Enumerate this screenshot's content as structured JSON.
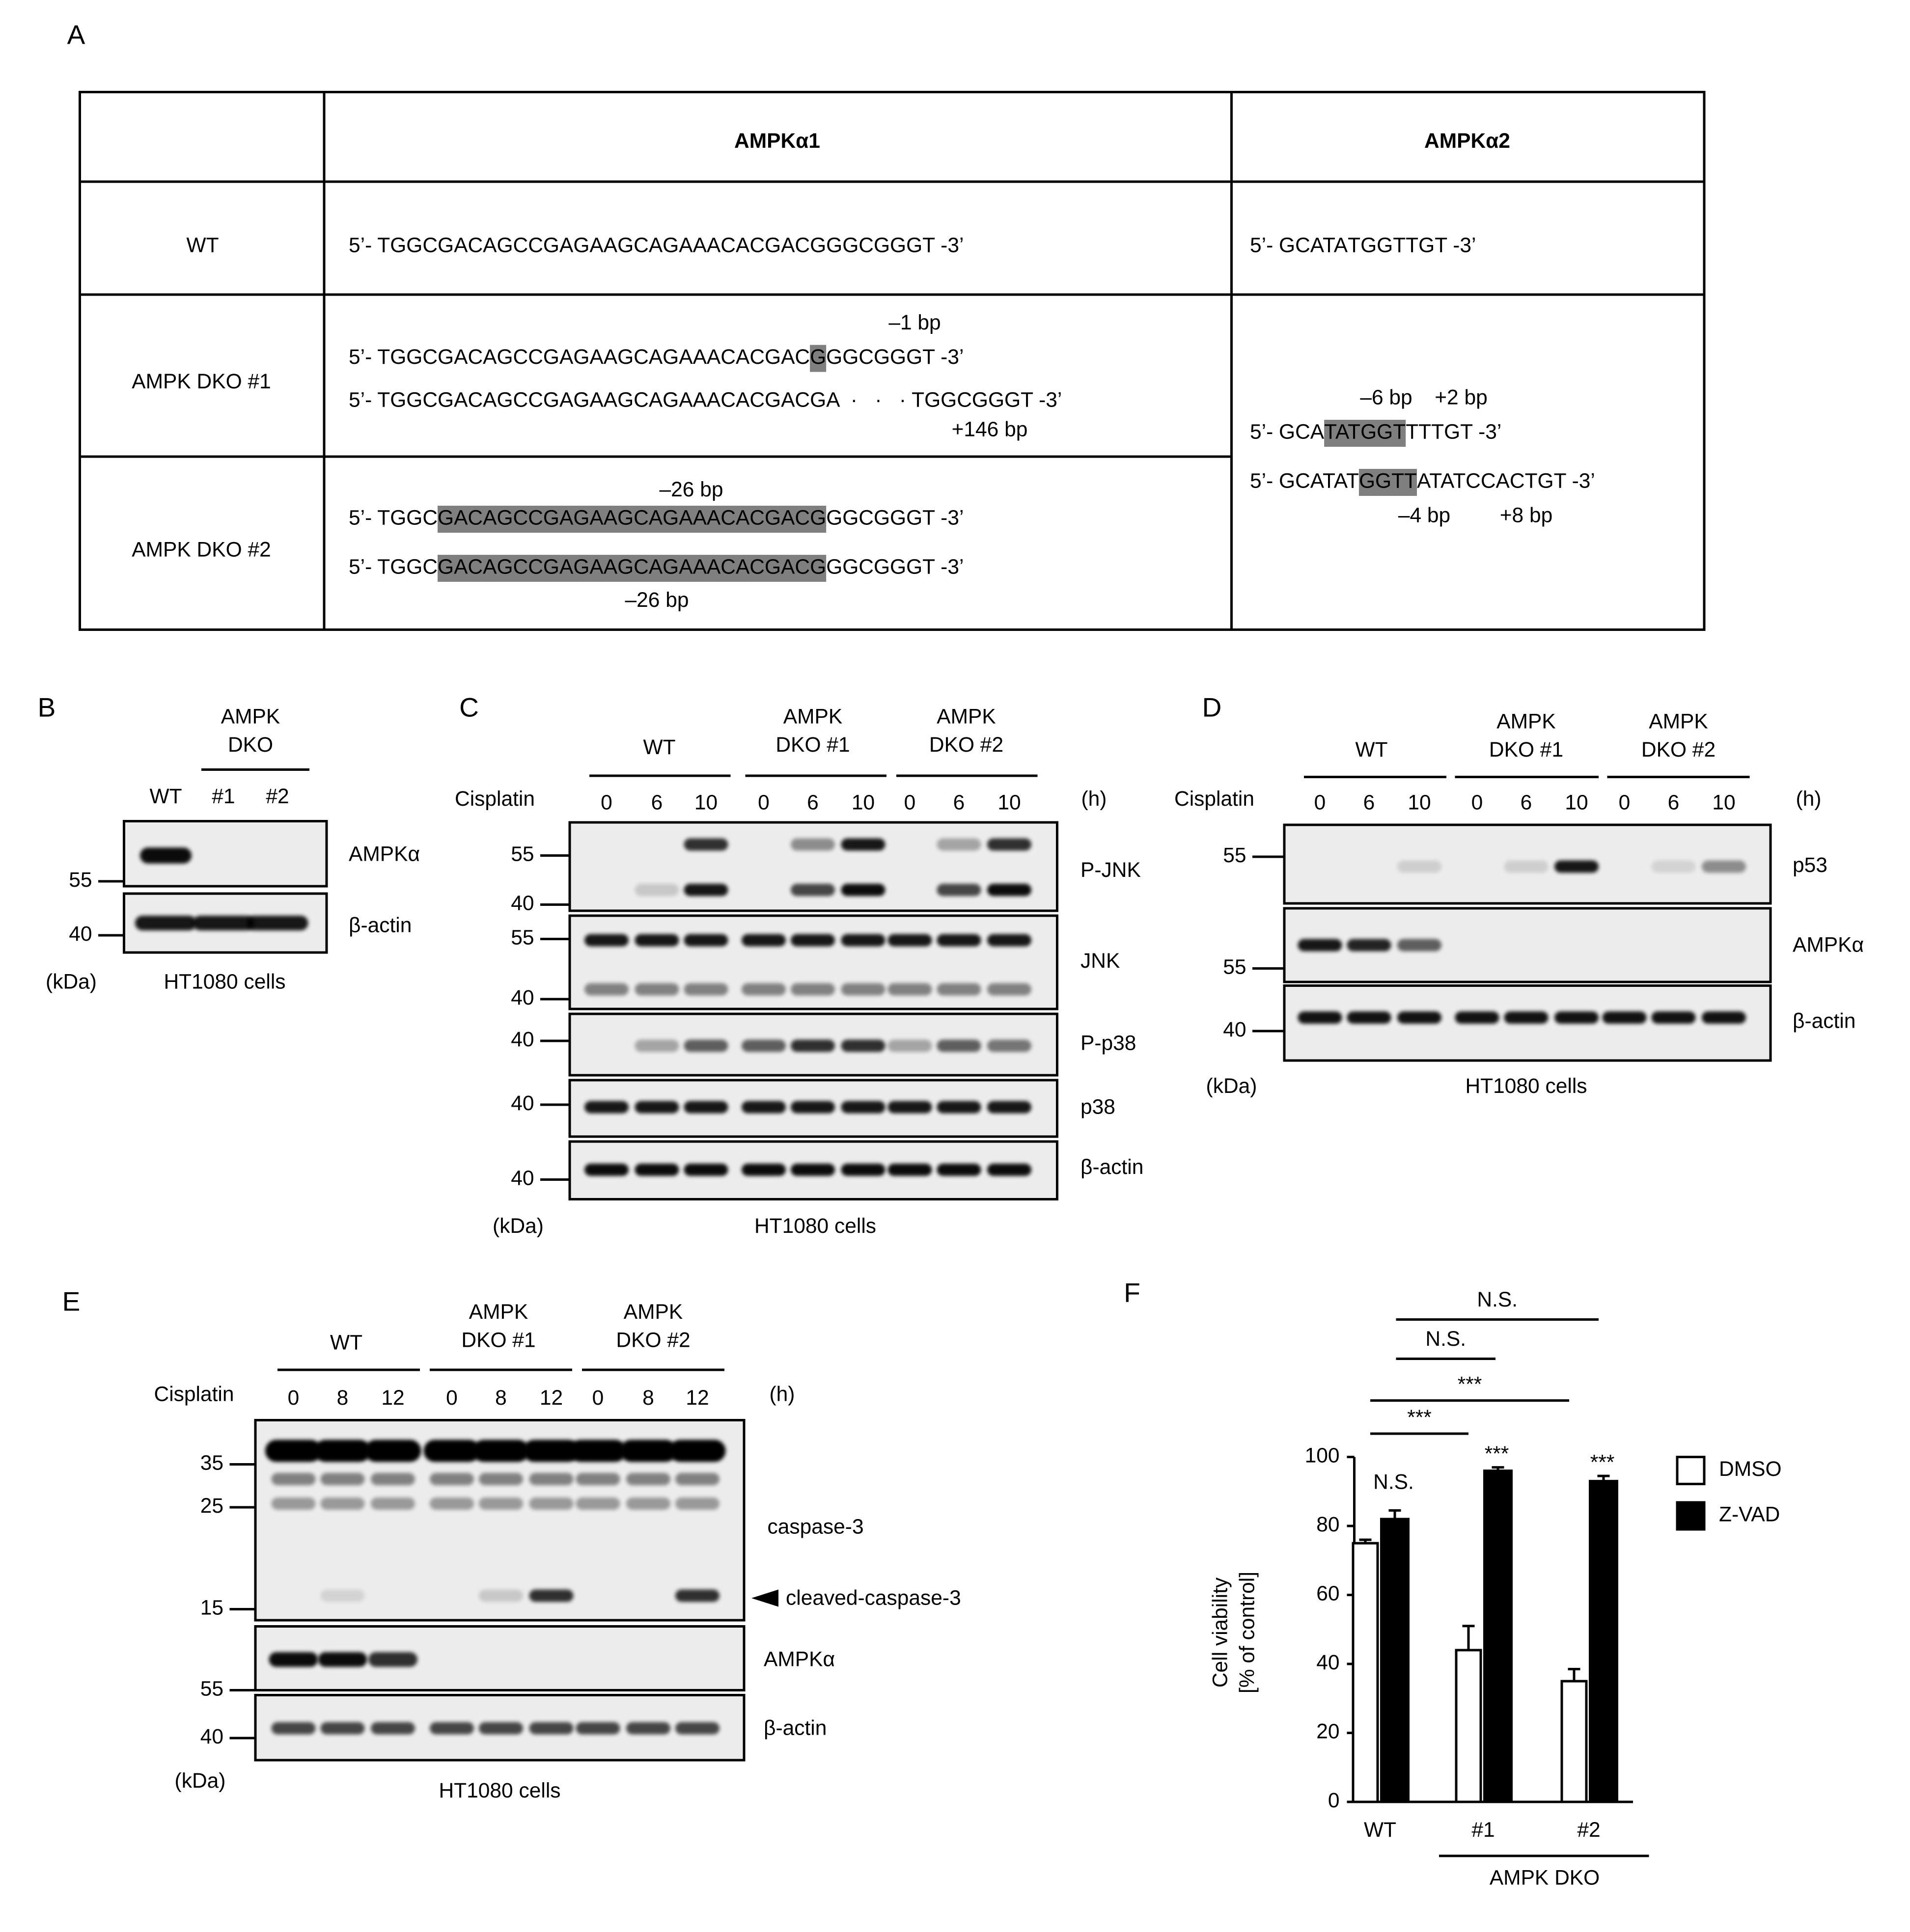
{
  "panel_a": {
    "label": "A",
    "headers": [
      "AMPKα1",
      "AMPKα2"
    ],
    "row_labels": [
      "WT",
      "AMPK DKO #1",
      "AMPK DKO #2"
    ],
    "sequences": [
      {
        "segments": [
          {
            "text": "5’- TGGCGACAGCCGAGAAGCAGAAACACGACGGGC",
            "style": "plain"
          },
          {
            "text": "GGG",
            "style": "blue"
          },
          {
            "text": "T -3’",
            "style": "plain"
          }
        ]
      },
      {
        "segments": [
          {
            "text": "5’- GCATA",
            "style": "plain"
          },
          {
            "text": "TGG",
            "style": "blue"
          },
          {
            "text": "TTGT -3’",
            "style": "plain"
          }
        ]
      },
      {
        "segments": [
          {
            "text": "5’- TGGCGACAGCCGAGAAGCAGAAACACGAC",
            "style": "plain"
          },
          {
            "text": "G",
            "style": "gray"
          },
          {
            "text": "GGC",
            "style": "plain"
          },
          {
            "text": "GGG",
            "style": "blue"
          },
          {
            "text": "T -3’",
            "style": "plain"
          }
        ]
      },
      {
        "segments": [
          {
            "text": "5’- TGGCGACAGCCGAGAAGCAGAAACACGACG",
            "style": "plain"
          },
          {
            "text": "A  ·   ·   · T",
            "style": "red"
          },
          {
            "text": "GGC",
            "style": "plain"
          },
          {
            "text": "GGG",
            "style": "blue"
          },
          {
            "text": "T -3’",
            "style": "plain"
          }
        ]
      },
      {
        "segments": [
          {
            "text": "5’- TGGC",
            "style": "plain"
          },
          {
            "text": "GACAGCCGAGAAGCAGAAACACGACG",
            "style": "gray"
          },
          {
            "text": "GGC",
            "style": "plain"
          },
          {
            "text": "GGG",
            "style": "blue"
          },
          {
            "text": "T -3’",
            "style": "plain"
          }
        ]
      },
      {
        "segments": [
          {
            "text": "5’- TGGC",
            "style": "plain"
          },
          {
            "text": "GACAGCCGAGAAGCAGAAACACGACG",
            "style": "gray"
          },
          {
            "text": "GGC",
            "style": "plain"
          },
          {
            "text": "GGG",
            "style": "blue"
          },
          {
            "text": "T -3’",
            "style": "plain"
          }
        ]
      },
      {
        "segments": [
          {
            "text": "5’- GCA",
            "style": "plain"
          },
          {
            "text": "TATGGT",
            "style": "gray"
          },
          {
            "text": "TT",
            "style": "red"
          },
          {
            "text": "TGT -3’",
            "style": "plain"
          }
        ]
      },
      {
        "segments": [
          {
            "text": "5’- GCATAT",
            "style": "plain"
          },
          {
            "text": "GGTT",
            "style": "gray"
          },
          {
            "text": "ATATCCAC",
            "style": "red"
          },
          {
            "text": "TGT -3’",
            "style": "plain"
          }
        ]
      }
    ],
    "annotations": [
      {
        "text": "–1 bp",
        "style": "plain"
      },
      {
        "text": "+146 bp",
        "style": "red"
      },
      {
        "text": "–26 bp",
        "style": "plain"
      },
      {
        "text": "–26 bp",
        "style": "plain"
      },
      {
        "text": "–6 bp",
        "style": "plain"
      },
      {
        "text": "+2 bp",
        "style": "red"
      },
      {
        "text": "–4 bp",
        "style": "plain"
      },
      {
        "text": "+8 bp",
        "style": "red"
      }
    ]
  },
  "panel_b": {
    "label": "B",
    "groups": [
      [
        "AMPK",
        "DKO"
      ]
    ],
    "lanes": [
      "WT",
      "#1",
      "#2"
    ],
    "blots": [
      "AMPKα",
      "β-actin"
    ],
    "mw": [
      "55",
      "40"
    ],
    "unit": "(kDa)",
    "cells": "HT1080 cells"
  },
  "panel_c": {
    "label": "C",
    "groups": [
      [
        "WT"
      ],
      [
        "AMPK",
        "DKO #1"
      ],
      [
        "AMPK",
        "DKO #2"
      ]
    ],
    "treatment": "Cisplatin",
    "times": [
      "0",
      "6",
      "10",
      "0",
      "6",
      "10",
      "0",
      "6",
      "10"
    ],
    "time_unit": "(h)",
    "blots": [
      "P-JNK",
      "JNK",
      "P-p38",
      "p38",
      "β-actin"
    ],
    "mw": [
      "55",
      "40",
      "55",
      "40",
      "40",
      "40",
      "40"
    ],
    "unit": "(kDa)",
    "cells": "HT1080 cells"
  },
  "panel_d": {
    "label": "D",
    "groups": [
      [
        "WT"
      ],
      [
        "AMPK",
        "DKO #1"
      ],
      [
        "AMPK",
        "DKO #2"
      ]
    ],
    "treatment": "Cisplatin",
    "times": [
      "0",
      "6",
      "10",
      "0",
      "6",
      "10",
      "0",
      "6",
      "10"
    ],
    "time_unit": "(h)",
    "blots": [
      "p53",
      "AMPKα",
      "β-actin"
    ],
    "mw": [
      "55",
      "55",
      "40"
    ],
    "unit": "(kDa)",
    "cells": "HT1080 cells"
  },
  "panel_e": {
    "label": "E",
    "groups": [
      [
        "WT"
      ],
      [
        "AMPK",
        "DKO #1"
      ],
      [
        "AMPK",
        "DKO #2"
      ]
    ],
    "treatment": "Cisplatin",
    "times": [
      "0",
      "8",
      "12",
      "0",
      "8",
      "12",
      "0",
      "8",
      "12"
    ],
    "time_unit": "(h)",
    "blots": [
      "caspase-3",
      "cleaved-caspase-3",
      "AMPKα",
      "β-actin"
    ],
    "mw": [
      "35",
      "25",
      "15",
      "55",
      "40"
    ],
    "unit": "(kDa)",
    "cells": "HT1080 cells"
  },
  "chart_data": {
    "type": "bar",
    "label": "F",
    "y_label": [
      "Cell viability",
      "[% of control]"
    ],
    "categories": [
      "WT",
      "#1",
      "#2"
    ],
    "group_label": "AMPK DKO",
    "series": [
      {
        "name": "DMSO",
        "color": "#ffffff",
        "values": [
          75,
          44,
          35
        ],
        "errors": [
          1,
          7,
          3.5
        ]
      },
      {
        "name": "Z-VAD",
        "color": "#000000",
        "values": [
          82,
          96,
          93
        ],
        "errors": [
          2.5,
          1,
          1.5
        ]
      }
    ],
    "ylim": [
      0,
      100
    ],
    "yticks": [
      0,
      20,
      40,
      60,
      80,
      100
    ],
    "bar_labels": [
      "N.S.",
      "***",
      "***"
    ],
    "comparisons": [
      "***",
      "***",
      "N.S.",
      "N.S."
    ]
  }
}
